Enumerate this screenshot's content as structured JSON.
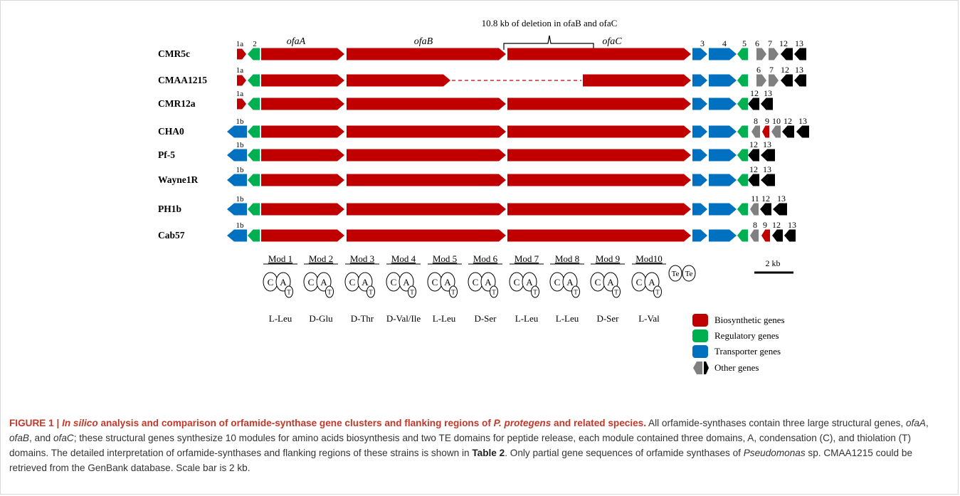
{
  "figure": {
    "deletion_note": "10.8 kb of deletion in ofaB and ofaC",
    "gene_labels": {
      "ofaA": "ofaA",
      "ofaB": "ofaB",
      "ofaC": "ofaC"
    },
    "strains": [
      {
        "name": "CMR5c",
        "first": "1a",
        "variant": "full",
        "right_nums": [
          "3",
          "4",
          "5",
          "6",
          "7",
          "12",
          "13"
        ]
      },
      {
        "name": "CMAA1215",
        "first": "1a",
        "variant": "deletion",
        "right_nums": [
          "6",
          "7",
          "12",
          "13"
        ]
      },
      {
        "name": "CMR12a",
        "first": "1a",
        "variant": "full",
        "right_nums": [
          "12",
          "13"
        ]
      },
      {
        "name": "CHA0",
        "first": "1b",
        "variant": "full",
        "right_nums": [
          "8",
          "9",
          "10",
          "12",
          "13"
        ]
      },
      {
        "name": "Pf-5",
        "first": "1b",
        "variant": "full",
        "right_nums": [
          "12",
          "13"
        ]
      },
      {
        "name": "Wayne1R",
        "first": "1b",
        "variant": "full",
        "right_nums": [
          "12",
          "13"
        ]
      },
      {
        "name": "PH1b",
        "first": "1b",
        "variant": "full",
        "right_nums": [
          "11",
          "12",
          "13"
        ]
      },
      {
        "name": "Cab57",
        "first": "1b",
        "variant": "full",
        "right_nums": [
          "8",
          "9",
          "12",
          "13"
        ]
      }
    ],
    "second_gene_label": "2",
    "modules": [
      "Mod 1",
      "Mod 2",
      "Mod 3",
      "Mod 4",
      "Mod 5",
      "Mod 6",
      "Mod 7",
      "Mod 8",
      "Mod 9",
      "Mod10"
    ],
    "domains": {
      "c": "C",
      "a": "A",
      "t": "T",
      "te": "Te"
    },
    "amino_acids": [
      "L-Leu",
      "D-Glu",
      "D-Thr",
      "D-Val/Ile",
      "L-Leu",
      "D-Ser",
      "L-Leu",
      "L-Leu",
      "D-Ser",
      "L-Val"
    ],
    "scale_label": "2 kb",
    "legend": [
      {
        "label": "Biosynthetic genes",
        "color": "#c00000"
      },
      {
        "label": "Regulatory genes",
        "color": "#00b050"
      },
      {
        "label": "Transporter genes",
        "color": "#0070c0"
      },
      {
        "label": "Other genes",
        "color": "#808080",
        "color2": "#000000"
      }
    ]
  },
  "caption": {
    "figure_label": "FIGURE 1 |",
    "title_italic": "In silico",
    "title_rest": "analysis and comparison of orfamide-synthase gene clusters and flanking regions of",
    "title_species": "P. protegens",
    "title_end": "and related species.",
    "t1": "All orfamide-synthases contain three large structural genes,",
    "g1": "ofaA",
    "t2": ",",
    "g2": "ofaB",
    "t3": ", and",
    "g3": "ofaC",
    "t4": "; these structural genes synthesize 10 modules for amino acids biosynthesis and two TE domains for peptide release, each module contained three domains, A, condensation (C), and thiolation (T) domains. The detailed interpretation of orfamide-synthases and flanking regions of these strains is shown in",
    "table_ref": "Table 2",
    "t5": ". Only partial gene sequences of orfamide synthases of",
    "genus": "Pseudomonas",
    "t6": "sp. CMAA1215 could be retrieved from the GenBank database. Scale bar is 2 kb."
  }
}
